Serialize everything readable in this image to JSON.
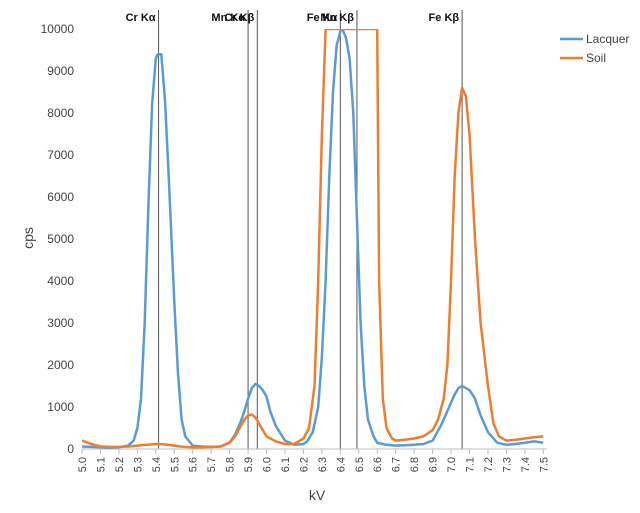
{
  "chart_data": {
    "type": "line",
    "xlabel": "kV",
    "ylabel": "cps",
    "xlim": [
      5.0,
      7.52
    ],
    "ylim": [
      0,
      10000
    ],
    "y_ticks": [
      0,
      1000,
      2000,
      3000,
      4000,
      5000,
      6000,
      7000,
      8000,
      9000,
      10000
    ],
    "x_ticks": [
      "5.0",
      "5.1",
      "5.2",
      "5.3",
      "5.4",
      "5.5",
      "5.6",
      "5.7",
      "5.8",
      "5.9",
      "6.0",
      "6.1",
      "6.2",
      "6.3",
      "6.4",
      "6.5",
      "6.6",
      "6.7",
      "6.8",
      "6.9",
      "7.0",
      "7.1",
      "7.2",
      "7.3",
      "7.4",
      "7.5"
    ],
    "grid": false,
    "legend_position": "top-right",
    "colors": {
      "Lacquer": "#5b9bd5",
      "Soil": "#ed7d31",
      "reference_lines": "#555555"
    },
    "reference_lines": [
      {
        "label": "Cr Kα",
        "x": 5.415
      },
      {
        "label": "Mn Kα",
        "x": 5.9
      },
      {
        "label": "Cr Kβ",
        "x": 5.95
      },
      {
        "label": "Fe Kα",
        "x": 6.4
      },
      {
        "label": "Mn Kβ",
        "x": 6.49
      },
      {
        "label": "Fe Kβ",
        "x": 7.06
      }
    ],
    "series": [
      {
        "name": "Lacquer",
        "x": [
          5.0,
          5.05,
          5.1,
          5.15,
          5.2,
          5.25,
          5.28,
          5.3,
          5.32,
          5.34,
          5.36,
          5.38,
          5.4,
          5.41,
          5.43,
          5.45,
          5.47,
          5.5,
          5.52,
          5.54,
          5.56,
          5.6,
          5.65,
          5.7,
          5.75,
          5.8,
          5.83,
          5.86,
          5.88,
          5.9,
          5.92,
          5.94,
          5.96,
          5.98,
          6.0,
          6.02,
          6.05,
          6.1,
          6.15,
          6.2,
          6.22,
          6.25,
          6.28,
          6.3,
          6.32,
          6.34,
          6.36,
          6.38,
          6.4,
          6.41,
          6.43,
          6.45,
          6.47,
          6.49,
          6.51,
          6.53,
          6.55,
          6.58,
          6.6,
          6.65,
          6.7,
          6.75,
          6.8,
          6.85,
          6.9,
          6.95,
          7.0,
          7.02,
          7.04,
          7.06,
          7.08,
          7.1,
          7.13,
          7.16,
          7.2,
          7.25,
          7.3,
          7.35,
          7.4,
          7.45,
          7.5
        ],
        "values": [
          60,
          50,
          40,
          30,
          40,
          80,
          200,
          500,
          1200,
          3000,
          5800,
          8200,
          9300,
          9400,
          9400,
          8300,
          6500,
          3500,
          1800,
          700,
          300,
          80,
          60,
          50,
          60,
          150,
          350,
          650,
          900,
          1200,
          1450,
          1550,
          1500,
          1400,
          1250,
          900,
          550,
          200,
          100,
          120,
          180,
          400,
          1000,
          2200,
          4000,
          6500,
          8500,
          9600,
          9950,
          10000,
          9800,
          9300,
          8000,
          5500,
          3000,
          1500,
          700,
          300,
          150,
          100,
          80,
          90,
          100,
          120,
          200,
          600,
          1100,
          1300,
          1450,
          1500,
          1450,
          1400,
          1200,
          800,
          400,
          150,
          100,
          120,
          150,
          180,
          150
        ]
      },
      {
        "name": "Soil",
        "x": [
          5.0,
          5.05,
          5.1,
          5.15,
          5.2,
          5.25,
          5.3,
          5.35,
          5.4,
          5.45,
          5.5,
          5.55,
          5.6,
          5.65,
          5.7,
          5.75,
          5.8,
          5.83,
          5.86,
          5.88,
          5.9,
          5.92,
          5.94,
          5.96,
          6.0,
          6.05,
          6.1,
          6.15,
          6.2,
          6.23,
          6.26,
          6.28,
          6.3,
          6.32,
          6.34,
          6.6,
          6.61,
          6.63,
          6.65,
          6.68,
          6.7,
          6.75,
          6.8,
          6.85,
          6.9,
          6.93,
          6.96,
          6.98,
          7.0,
          7.02,
          7.04,
          7.06,
          7.08,
          7.1,
          7.13,
          7.16,
          7.2,
          7.23,
          7.26,
          7.3,
          7.35,
          7.4,
          7.45,
          7.5
        ],
        "values": [
          200,
          120,
          60,
          50,
          50,
          60,
          80,
          100,
          120,
          110,
          80,
          50,
          40,
          40,
          50,
          60,
          150,
          300,
          550,
          700,
          800,
          820,
          750,
          600,
          300,
          180,
          120,
          120,
          250,
          500,
          1500,
          4000,
          7500,
          10000,
          10000,
          10000,
          4000,
          1200,
          500,
          250,
          200,
          220,
          250,
          300,
          450,
          700,
          1200,
          2000,
          4000,
          6500,
          8000,
          8600,
          8400,
          7500,
          5000,
          3000,
          1500,
          600,
          300,
          200,
          220,
          250,
          280,
          300
        ]
      }
    ]
  }
}
